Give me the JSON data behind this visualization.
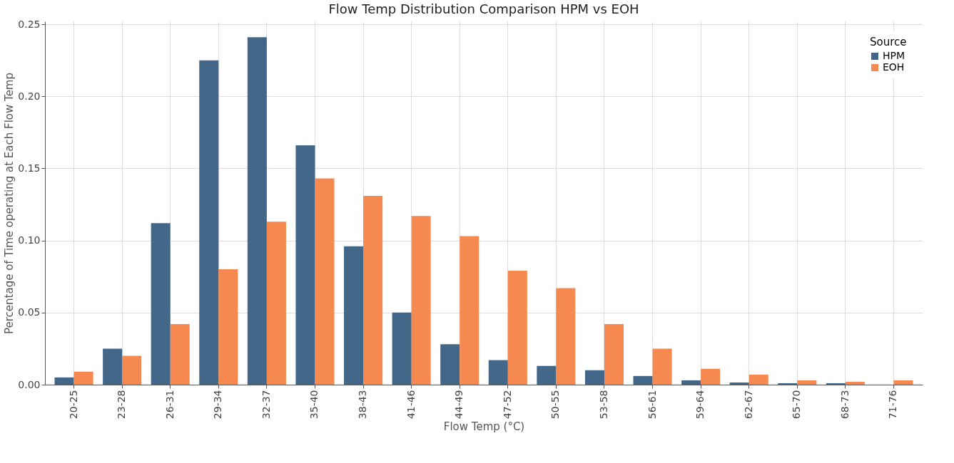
{
  "chart_data": {
    "type": "bar",
    "title": "Flow Temp Distribution Comparison HPM vs EOH",
    "xlabel": "Flow Temp (°C)",
    "ylabel": "Percentage of Time operating at Each Flow Temp",
    "legend_title": "Source",
    "categories": [
      "20-25",
      "23-28",
      "26-31",
      "29-34",
      "32-37",
      "35-40",
      "38-43",
      "41-46",
      "44-49",
      "47-52",
      "50-55",
      "53-58",
      "56-61",
      "59-64",
      "62-67",
      "65-70",
      "68-73",
      "71-76"
    ],
    "series": [
      {
        "name": "HPM",
        "color": "#426788",
        "values": [
          0.005,
          0.025,
          0.112,
          0.225,
          0.241,
          0.166,
          0.096,
          0.05,
          0.028,
          0.017,
          0.013,
          0.01,
          0.006,
          0.003,
          0.0015,
          0.001,
          0.001,
          0
        ]
      },
      {
        "name": "EOH",
        "color": "#f5894f",
        "values": [
          0.009,
          0.02,
          0.042,
          0.08,
          0.113,
          0.143,
          0.131,
          0.117,
          0.103,
          0.079,
          0.067,
          0.042,
          0.025,
          0.011,
          0.007,
          0.003,
          0.002,
          0.003
        ]
      }
    ],
    "ylim": [
      0,
      0.252
    ],
    "yticks": [
      {
        "value": 0,
        "label": "0.00"
      },
      0.05,
      {
        "value": 0.1,
        "label": "0.10"
      },
      0.15,
      {
        "value": 0.2,
        "label": "0.20"
      },
      0.25
    ],
    "grid": true,
    "legend": "top right"
  }
}
